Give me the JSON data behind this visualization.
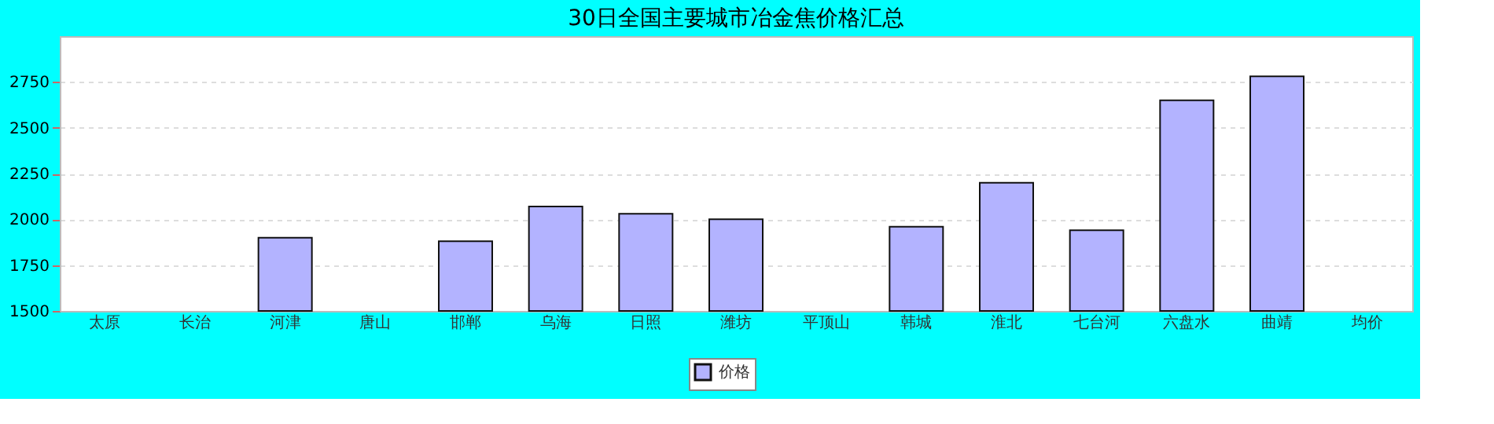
{
  "chart_data": {
    "type": "bar",
    "title": "30日全国主要城市冶金焦价格汇总",
    "categories": [
      "太原",
      "长治",
      "河津",
      "唐山",
      "邯郸",
      "乌海",
      "日照",
      "潍坊",
      "平顶山",
      "韩城",
      "淮北",
      "七台河",
      "六盘水",
      "曲靖",
      "均价"
    ],
    "series": [
      {
        "name": "价格",
        "color": "#b3b3ff",
        "values": [
          null,
          null,
          1900,
          null,
          1880,
          2070,
          2030,
          2000,
          null,
          1960,
          2200,
          1940,
          2650,
          2780,
          null
        ]
      }
    ],
    "ylim": [
      1500,
      3000
    ],
    "yticks": [
      1500,
      1750,
      2000,
      2250,
      2500,
      2750
    ],
    "grid": "y",
    "legend": "bottom"
  }
}
